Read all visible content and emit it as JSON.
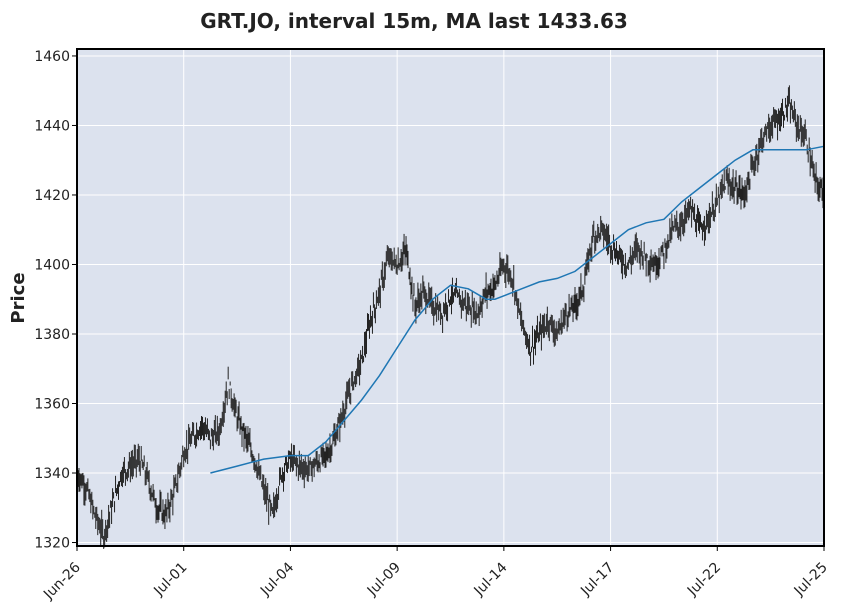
{
  "chart_data": {
    "type": "candlestick",
    "title": "GRT.JO, interval 15m, MA last 1433.63",
    "xlabel": "",
    "ylabel": "Price",
    "ylim": [
      1319,
      1462
    ],
    "yticks": [
      1320,
      1340,
      1360,
      1380,
      1400,
      1420,
      1440,
      1460
    ],
    "xticks": [
      "Jun-26",
      "Jul-01",
      "Jul-04",
      "Jul-09",
      "Jul-14",
      "Jul-17",
      "Jul-22",
      "Jul-25"
    ],
    "grid": true,
    "colors": {
      "plot_background": "#dce2ee",
      "grid": "#ffffff",
      "candles": "#222222",
      "moving_average": "#1f77b4"
    },
    "price_series": {
      "name": "price",
      "x": [
        0,
        0.25,
        0.5,
        0.75,
        1.0,
        1.25,
        1.5,
        1.75,
        2.0,
        2.25,
        2.5,
        2.75,
        3.0,
        3.25,
        3.5,
        3.75,
        4.0,
        4.25,
        4.5,
        4.75,
        5.0,
        5.25,
        5.5,
        5.75,
        6.0,
        6.25,
        6.5,
        6.75,
        7.0,
        7.25,
        7.5,
        7.75,
        8.0,
        8.25,
        8.5,
        8.75,
        9.0,
        9.25,
        9.5,
        9.75,
        10.0,
        10.25,
        10.5,
        10.75,
        11.0,
        11.25,
        11.5,
        11.75,
        12.0,
        12.25,
        12.5,
        12.75,
        13.0,
        13.25,
        13.5,
        13.75,
        14.0,
        14.25,
        14.5,
        14.75,
        15.0,
        15.25,
        15.5,
        15.75,
        16.0,
        16.25,
        16.5,
        16.75,
        17.0,
        17.25,
        17.5,
        17.75,
        18.0,
        18.25,
        18.5,
        18.75,
        19.0,
        19.25,
        19.5,
        19.75,
        20.0,
        20.25,
        20.5,
        20.75,
        21.0
      ],
      "values": [
        1340,
        1336,
        1328,
        1322,
        1331,
        1340,
        1342,
        1344,
        1338,
        1330,
        1328,
        1335,
        1346,
        1350,
        1354,
        1350,
        1352,
        1366,
        1356,
        1350,
        1344,
        1335,
        1328,
        1340,
        1344,
        1342,
        1341,
        1343,
        1345,
        1350,
        1358,
        1366,
        1372,
        1384,
        1392,
        1402,
        1400,
        1404,
        1388,
        1392,
        1388,
        1386,
        1391,
        1390,
        1388,
        1386,
        1392,
        1394,
        1400,
        1396,
        1383,
        1376,
        1380,
        1384,
        1380,
        1386,
        1388,
        1394,
        1408,
        1410,
        1406,
        1402,
        1400,
        1405,
        1402,
        1400,
        1404,
        1410,
        1412,
        1416,
        1410,
        1413,
        1418,
        1424,
        1422,
        1420,
        1428,
        1436,
        1440,
        1442,
        1446,
        1440,
        1436,
        1424,
        1420
      ]
    },
    "moving_average": {
      "name": "MA",
      "x": [
        3.75,
        4.5,
        5.25,
        6.0,
        6.5,
        7.0,
        7.5,
        8.0,
        8.5,
        9.0,
        9.5,
        10.0,
        10.5,
        11.0,
        11.5,
        11.75,
        12.0,
        12.5,
        13.0,
        13.5,
        14.0,
        14.5,
        15.0,
        15.5,
        16.0,
        16.5,
        17.0,
        17.5,
        18.0,
        18.5,
        19.0,
        19.5,
        20.0,
        20.5,
        21.0
      ],
      "values": [
        1340,
        1342,
        1344,
        1345,
        1345,
        1349,
        1355,
        1361,
        1368,
        1376,
        1384,
        1390,
        1394,
        1393,
        1390,
        1390,
        1391,
        1393,
        1395,
        1396,
        1398,
        1402,
        1406,
        1410,
        1412,
        1413,
        1418,
        1422,
        1426,
        1430,
        1433,
        1433,
        1433,
        1433,
        1434
      ]
    },
    "last_ma": "1433.63"
  }
}
